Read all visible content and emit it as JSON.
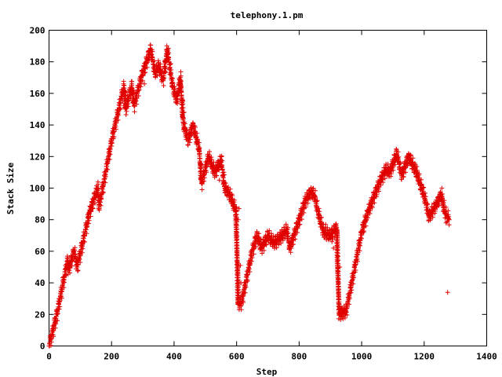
{
  "chart_data": {
    "type": "scatter",
    "title": "telephony.1.pm",
    "xlabel": "Step",
    "ylabel": "Stack Size",
    "xlim": [
      0,
      1400
    ],
    "ylim": [
      0,
      200
    ],
    "xticks": [
      0,
      200,
      400,
      600,
      800,
      1000,
      1200,
      1400
    ],
    "yticks": [
      0,
      20,
      40,
      60,
      80,
      100,
      120,
      140,
      160,
      180,
      200
    ],
    "grid": false,
    "legend": "none",
    "marker": "plus",
    "color": "#e00000",
    "trend": [
      [
        0,
        0
      ],
      [
        25,
        20
      ],
      [
        60,
        55
      ],
      [
        62,
        48
      ],
      [
        80,
        60
      ],
      [
        90,
        50
      ],
      [
        130,
        85
      ],
      [
        155,
        100
      ],
      [
        160,
        88
      ],
      [
        200,
        130
      ],
      [
        240,
        165
      ],
      [
        245,
        150
      ],
      [
        265,
        165
      ],
      [
        272,
        152
      ],
      [
        295,
        170
      ],
      [
        325,
        188
      ],
      [
        340,
        172
      ],
      [
        350,
        178
      ],
      [
        365,
        168
      ],
      [
        378,
        188
      ],
      [
        395,
        165
      ],
      [
        408,
        155
      ],
      [
        420,
        170
      ],
      [
        430,
        140
      ],
      [
        445,
        130
      ],
      [
        460,
        140
      ],
      [
        480,
        125
      ],
      [
        488,
        103
      ],
      [
        510,
        120
      ],
      [
        530,
        110
      ],
      [
        550,
        118
      ],
      [
        562,
        100
      ],
      [
        580,
        95
      ],
      [
        598,
        85
      ],
      [
        605,
        27
      ],
      [
        615,
        27
      ],
      [
        650,
        60
      ],
      [
        665,
        70
      ],
      [
        680,
        62
      ],
      [
        700,
        70
      ],
      [
        720,
        65
      ],
      [
        745,
        70
      ],
      [
        760,
        74
      ],
      [
        770,
        62
      ],
      [
        820,
        92
      ],
      [
        838,
        98
      ],
      [
        850,
        95
      ],
      [
        860,
        85
      ],
      [
        878,
        72
      ],
      [
        900,
        70
      ],
      [
        920,
        75
      ],
      [
        928,
        20
      ],
      [
        950,
        22
      ],
      [
        968,
        40
      ],
      [
        1000,
        72
      ],
      [
        1020,
        85
      ],
      [
        1060,
        105
      ],
      [
        1078,
        112
      ],
      [
        1090,
        110
      ],
      [
        1112,
        122
      ],
      [
        1128,
        108
      ],
      [
        1150,
        120
      ],
      [
        1175,
        110
      ],
      [
        1200,
        95
      ],
      [
        1215,
        82
      ],
      [
        1240,
        90
      ],
      [
        1255,
        96
      ],
      [
        1265,
        85
      ],
      [
        1280,
        80
      ]
    ],
    "outliers": [
      [
        305,
        166
      ],
      [
        415,
        160
      ],
      [
        432,
        148
      ],
      [
        470,
        132
      ],
      [
        475,
        130
      ],
      [
        478,
        125
      ],
      [
        535,
        108
      ],
      [
        545,
        105
      ],
      [
        578,
        96
      ],
      [
        598,
        88
      ],
      [
        605,
        80
      ],
      [
        608,
        87
      ],
      [
        612,
        51
      ],
      [
        614,
        40
      ],
      [
        885,
        77
      ],
      [
        905,
        66
      ],
      [
        910,
        62
      ],
      [
        930,
        50
      ],
      [
        1270,
        78
      ],
      [
        1275,
        34
      ]
    ]
  }
}
